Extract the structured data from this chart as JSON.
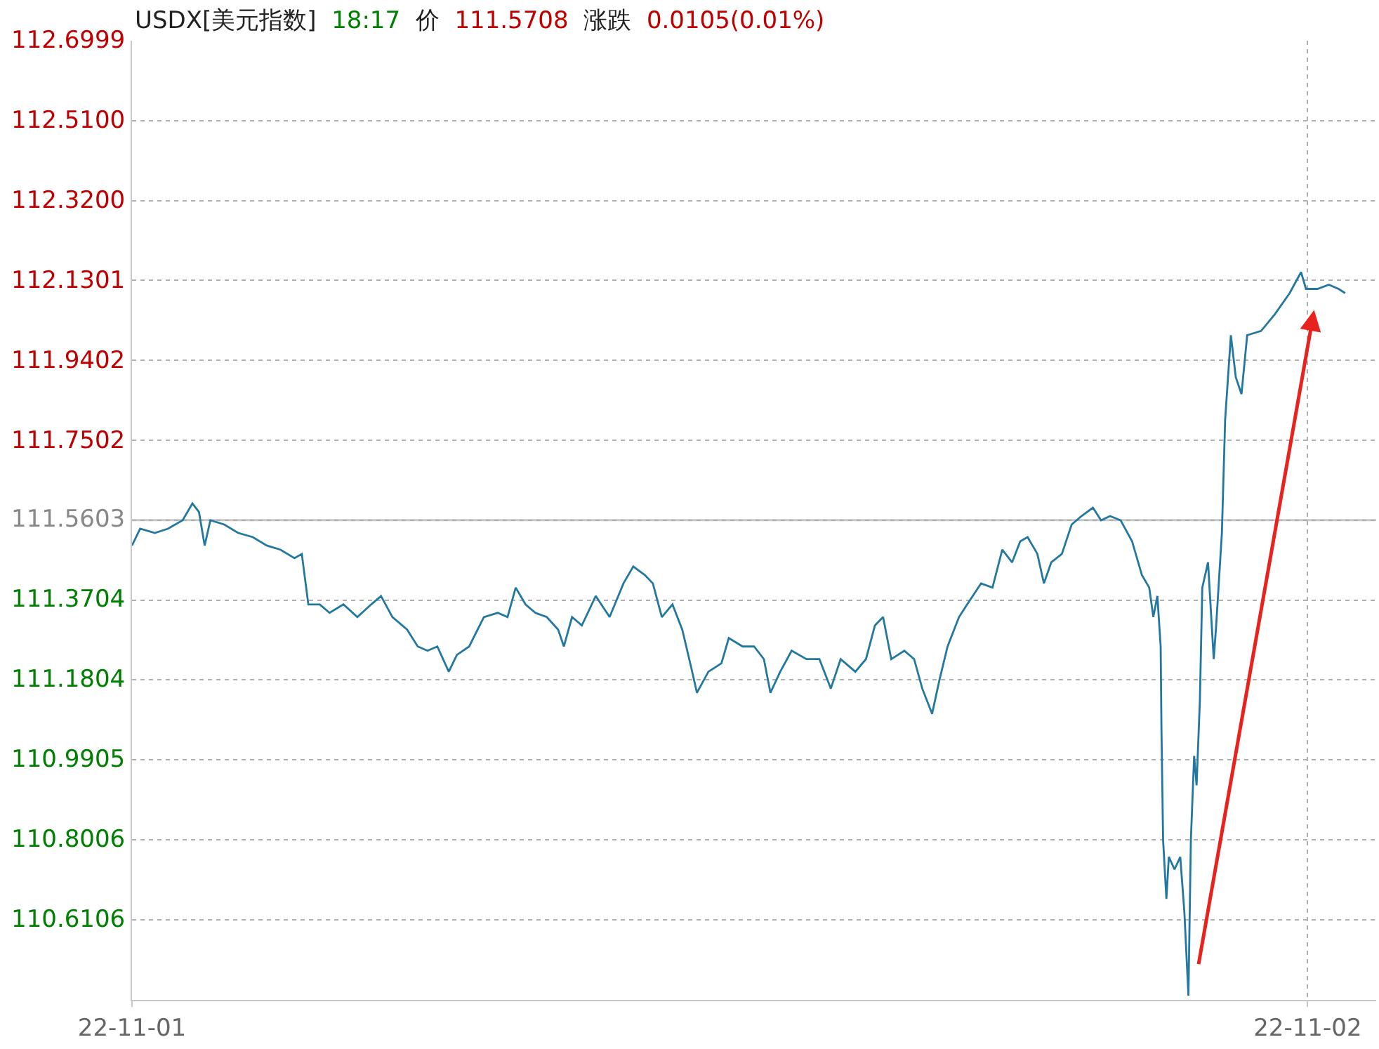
{
  "chart_data": {
    "type": "line",
    "title": "USDX[美元指数] 18:17 价 111.5708 涨跌 0.0105(0.01%)",
    "x": [
      "--11-01T00:00",
      "--11-01T00:10",
      "--11-01T00:28",
      "--11-01T00:44",
      "--11-01T01:02",
      "--11-01T01:14",
      "--11-01T01:22",
      "--11-01T01:29",
      "--11-01T01:36",
      "--11-01T01:53",
      "--11-01T02:10",
      "--11-01T02:28",
      "--11-01T02:45",
      "--11-01T03:02",
      "--11-01T03:19",
      "--11-01T03:28",
      "--11-01T03:36",
      "--11-01T03:50",
      "--11-01T04:02",
      "--11-01T04:19",
      "--11-01T04:36",
      "--11-01T04:53",
      "--11-01T05:05",
      "--11-01T05:19",
      "--11-01T05:37",
      "--11-01T05:50",
      "--11-01T06:02",
      "--11-01T06:14",
      "--11-01T06:28",
      "--11-01T06:38",
      "--11-01T06:53",
      "--11-01T07:11",
      "--11-01T07:28",
      "--11-01T07:40",
      "--11-01T07:50",
      "--11-01T08:02",
      "--11-01T08:14",
      "--11-01T08:28",
      "--11-01T08:42",
      "--11-01T08:49",
      "--11-01T08:59",
      "--11-01T09:11",
      "--11-01T09:28",
      "--11-01T09:45",
      "--11-01T10:02",
      "--11-01T10:14",
      "--11-01T10:28",
      "--11-01T10:38",
      "--11-01T10:49",
      "--11-01T11:02",
      "--11-01T11:14",
      "--11-01T11:25",
      "--11-01T11:32",
      "--11-01T11:46",
      "--11-01T12:02",
      "--11-01T12:11",
      "--11-01T12:28",
      "--11-01T12:42",
      "--11-01T12:54",
      "--11-01T13:02",
      "--11-01T13:14",
      "--11-01T13:28",
      "--11-01T13:46",
      "--11-01T14:02",
      "--11-01T14:16",
      "--11-01T14:28",
      "--11-01T14:46",
      "--11-01T14:59",
      "--11-01T15:10",
      "--11-01T15:20",
      "--11-01T15:30",
      "--11-01T15:46",
      "--11-01T15:58",
      "--11-01T16:08",
      "--11-01T16:20",
      "--11-01T16:29",
      "--11-01T16:39",
      "--11-01T16:53",
      "--11-01T17:03",
      "--11-01T17:20",
      "--11-01T17:34",
      "--11-01T17:46",
      "--11-01T17:58",
      "--11-01T18:08",
      "--11-01T18:17",
      "--11-01T18:29",
      "--11-01T18:37",
      "--11-01T18:46",
      "--11-01T18:59",
      "--11-01T19:11",
      "--11-01T19:23",
      "--11-01T19:37",
      "--11-01T19:47",
      "--11-01T19:58",
      "--11-01T20:11",
      "--11-01T20:25",
      "--11-01T20:37",
      "--11-01T20:46",
      "--11-01T20:51",
      "--11-01T20:56",
      "--11-01T21:00",
      "--11-01T21:01",
      "--11-01T21:03",
      "--11-01T21:07",
      "--11-01T21:10",
      "--11-01T21:17",
      "--11-01T21:24",
      "--11-01T21:29",
      "--11-01T21:34",
      "--11-01T21:37",
      "--11-01T21:41",
      "--11-01T21:44",
      "--11-01T21:48",
      "--11-01T21:51",
      "--11-01T21:58",
      "--11-01T22:05",
      "--11-01T22:08",
      "--11-01T22:15",
      "--11-01T22:19",
      "--11-01T22:26",
      "--11-01T22:32",
      "--11-01T22:39",
      "--11-01T22:46",
      "--11-01T23:03",
      "--11-01T23:20",
      "--11-01T23:38",
      "--11-01T23:52",
      "--11-01T23:58",
      "--11-02T00:12",
      "--11-02T00:26",
      "--11-02T00:38",
      "--11-02T00:46"
    ],
    "series": [
      {
        "color": "#2478a0",
        "values": [
          111.5,
          111.54,
          111.53,
          111.54,
          111.56,
          111.6,
          111.58,
          111.5,
          111.56,
          111.55,
          111.53,
          111.52,
          111.5,
          111.49,
          111.47,
          111.48,
          111.36,
          111.36,
          111.34,
          111.36,
          111.33,
          111.36,
          111.38,
          111.33,
          111.3,
          111.26,
          111.25,
          111.26,
          111.2,
          111.24,
          111.26,
          111.33,
          111.34,
          111.33,
          111.4,
          111.36,
          111.34,
          111.33,
          111.3,
          111.26,
          111.33,
          111.31,
          111.38,
          111.33,
          111.41,
          111.45,
          111.43,
          111.41,
          111.33,
          111.36,
          111.3,
          111.21,
          111.15,
          111.2,
          111.22,
          111.28,
          111.26,
          111.26,
          111.23,
          111.15,
          111.2,
          111.25,
          111.23,
          111.23,
          111.16,
          111.23,
          111.2,
          111.23,
          111.31,
          111.33,
          111.23,
          111.25,
          111.23,
          111.16,
          111.1,
          111.18,
          111.26,
          111.33,
          111.36,
          111.41,
          111.4,
          111.49,
          111.46,
          111.51,
          111.52,
          111.48,
          111.41,
          111.46,
          111.48,
          111.55,
          111.57,
          111.59,
          111.56,
          111.57,
          111.56,
          111.51,
          111.43,
          111.4,
          111.33,
          111.38,
          111.26,
          111.06,
          110.8,
          110.66,
          110.76,
          110.73,
          110.76,
          110.63,
          110.43,
          110.8,
          111.0,
          110.93,
          111.13,
          111.4,
          111.46,
          111.23,
          111.31,
          111.53,
          111.8,
          112.0,
          111.9,
          111.86,
          112.0,
          112.01,
          112.05,
          112.1,
          112.15,
          112.11,
          112.11,
          112.12,
          112.11,
          112.1
        ]
      }
    ],
    "xlim": [
      "--11-01T00:00",
      "--11-02T01:24"
    ],
    "xticks": [
      {
        "value": "--11-01",
        "label": "22-11-01"
      },
      {
        "value": "--11-02",
        "label": "22-11-02"
      }
    ],
    "ylim": [
      110.42,
      112.7
    ],
    "yticks": [
      {
        "value": 112.6999,
        "label": "112.6999"
      },
      {
        "value": 112.51,
        "label": "112.5100"
      },
      {
        "value": 112.32,
        "label": "112.3200"
      },
      {
        "value": 112.1301,
        "label": "112.1301"
      },
      {
        "value": 111.9402,
        "label": "111.9402"
      },
      {
        "value": 111.7502,
        "label": "111.7502"
      },
      {
        "value": 111.5603,
        "label": "111.5603"
      },
      {
        "value": 111.3704,
        "label": "111.3704"
      },
      {
        "value": 111.1804,
        "label": "111.1804"
      },
      {
        "value": 110.9905,
        "label": "110.9905"
      },
      {
        "value": 110.8006,
        "label": "110.8006"
      },
      {
        "value": 110.6106,
        "label": "110.6106"
      }
    ],
    "ref_lines": [
      {
        "axis": "y",
        "value": 111.5603,
        "color": "#c8c8c8",
        "line_style": "solid"
      }
    ],
    "grid": true,
    "marker": "none",
    "line_style": "solid"
  }
}
